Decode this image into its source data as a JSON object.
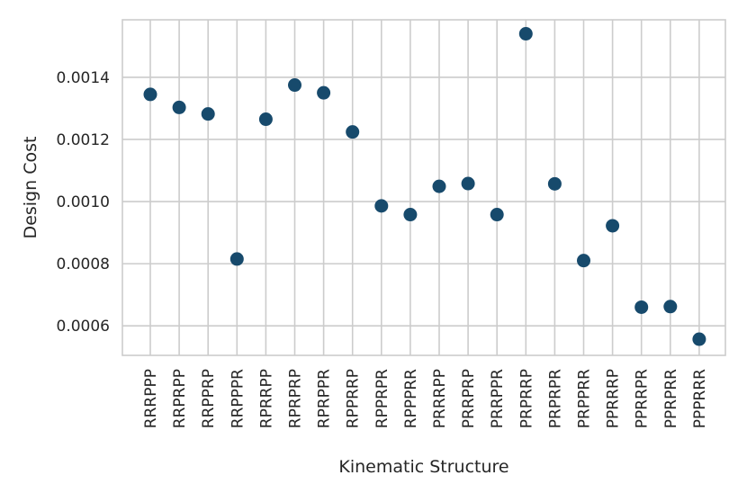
{
  "chart_data": {
    "type": "scatter",
    "title": "",
    "xlabel": "Kinematic Structure",
    "ylabel": "Design Cost",
    "categories": [
      "RRRPPP",
      "RRPRPP",
      "RRPPRP",
      "RRPPPR",
      "RPRRPP",
      "RPRPRP",
      "RPRPPR",
      "RPPRRP",
      "RPPRPR",
      "RPPPRR",
      "PRRRPP",
      "PRRPRP",
      "PRRPPR",
      "PRPRRP",
      "PRPRPR",
      "PRPPRR",
      "PPRRRP",
      "PPRRPR",
      "PPRPRR",
      "PPPRRR"
    ],
    "series": [
      {
        "values": [
          0.001345,
          0.001303,
          0.001282,
          0.000815,
          0.001265,
          0.001375,
          0.00135,
          0.001224,
          0.000986,
          0.000958,
          0.001049,
          0.001058,
          0.000958,
          0.00154,
          0.001057,
          0.00081,
          0.000922,
          0.00066,
          0.000662,
          0.000557
        ],
        "color": "#174a6c"
      }
    ],
    "yticks": [
      0.0006,
      0.0008,
      0.001,
      0.0012,
      0.0014
    ],
    "ytick_labels": [
      "0.0006",
      "0.0008",
      "0.0010",
      "0.0012",
      "0.0014"
    ],
    "ylim": [
      0.000505,
      0.001585
    ],
    "grid": true,
    "legend": "none"
  }
}
